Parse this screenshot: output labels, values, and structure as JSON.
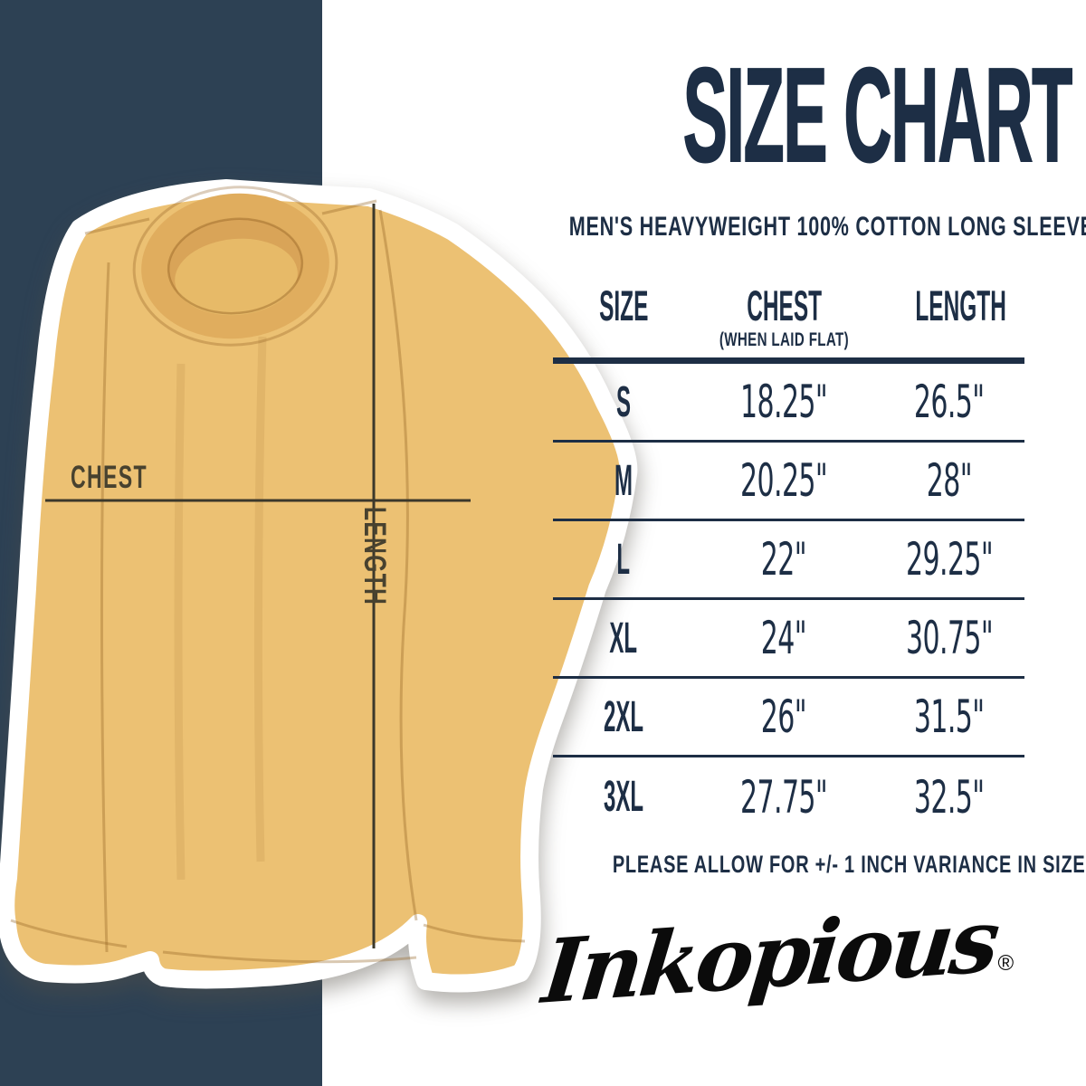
{
  "page": {
    "background": "#ffffff",
    "navy_block_color": "#2d4154",
    "text_navy": "#1d2e45"
  },
  "header": {
    "title": "SIZE CHART",
    "subtitle": "MEN'S HEAVYWEIGHT 100% COTTON LONG SLEEVE"
  },
  "shirt": {
    "color": "#ecc173",
    "collar_color": "#e0ad5e",
    "measure_line_color": "#3b382b",
    "chest_label": "CHEST",
    "length_label": "LENGTH"
  },
  "size_table": {
    "columns": [
      "SIZE",
      "CHEST",
      "LENGTH"
    ],
    "chest_note": "(WHEN LAID FLAT)",
    "rows": [
      {
        "size": "S",
        "chest": "18.25\"",
        "length": "26.5\""
      },
      {
        "size": "M",
        "chest": "20.25\"",
        "length": "28\""
      },
      {
        "size": "L",
        "chest": "22\"",
        "length": "29.25\""
      },
      {
        "size": "XL",
        "chest": "24\"",
        "length": "30.75\""
      },
      {
        "size": "2XL",
        "chest": "26\"",
        "length": "31.5\""
      },
      {
        "size": "3XL",
        "chest": "27.75\"",
        "length": "32.5\""
      }
    ]
  },
  "footer": {
    "variance_note": "PLEASE ALLOW FOR +/- 1 INCH VARIANCE IN SIZE",
    "brand": "Inkopious",
    "brand_mark": "®"
  }
}
